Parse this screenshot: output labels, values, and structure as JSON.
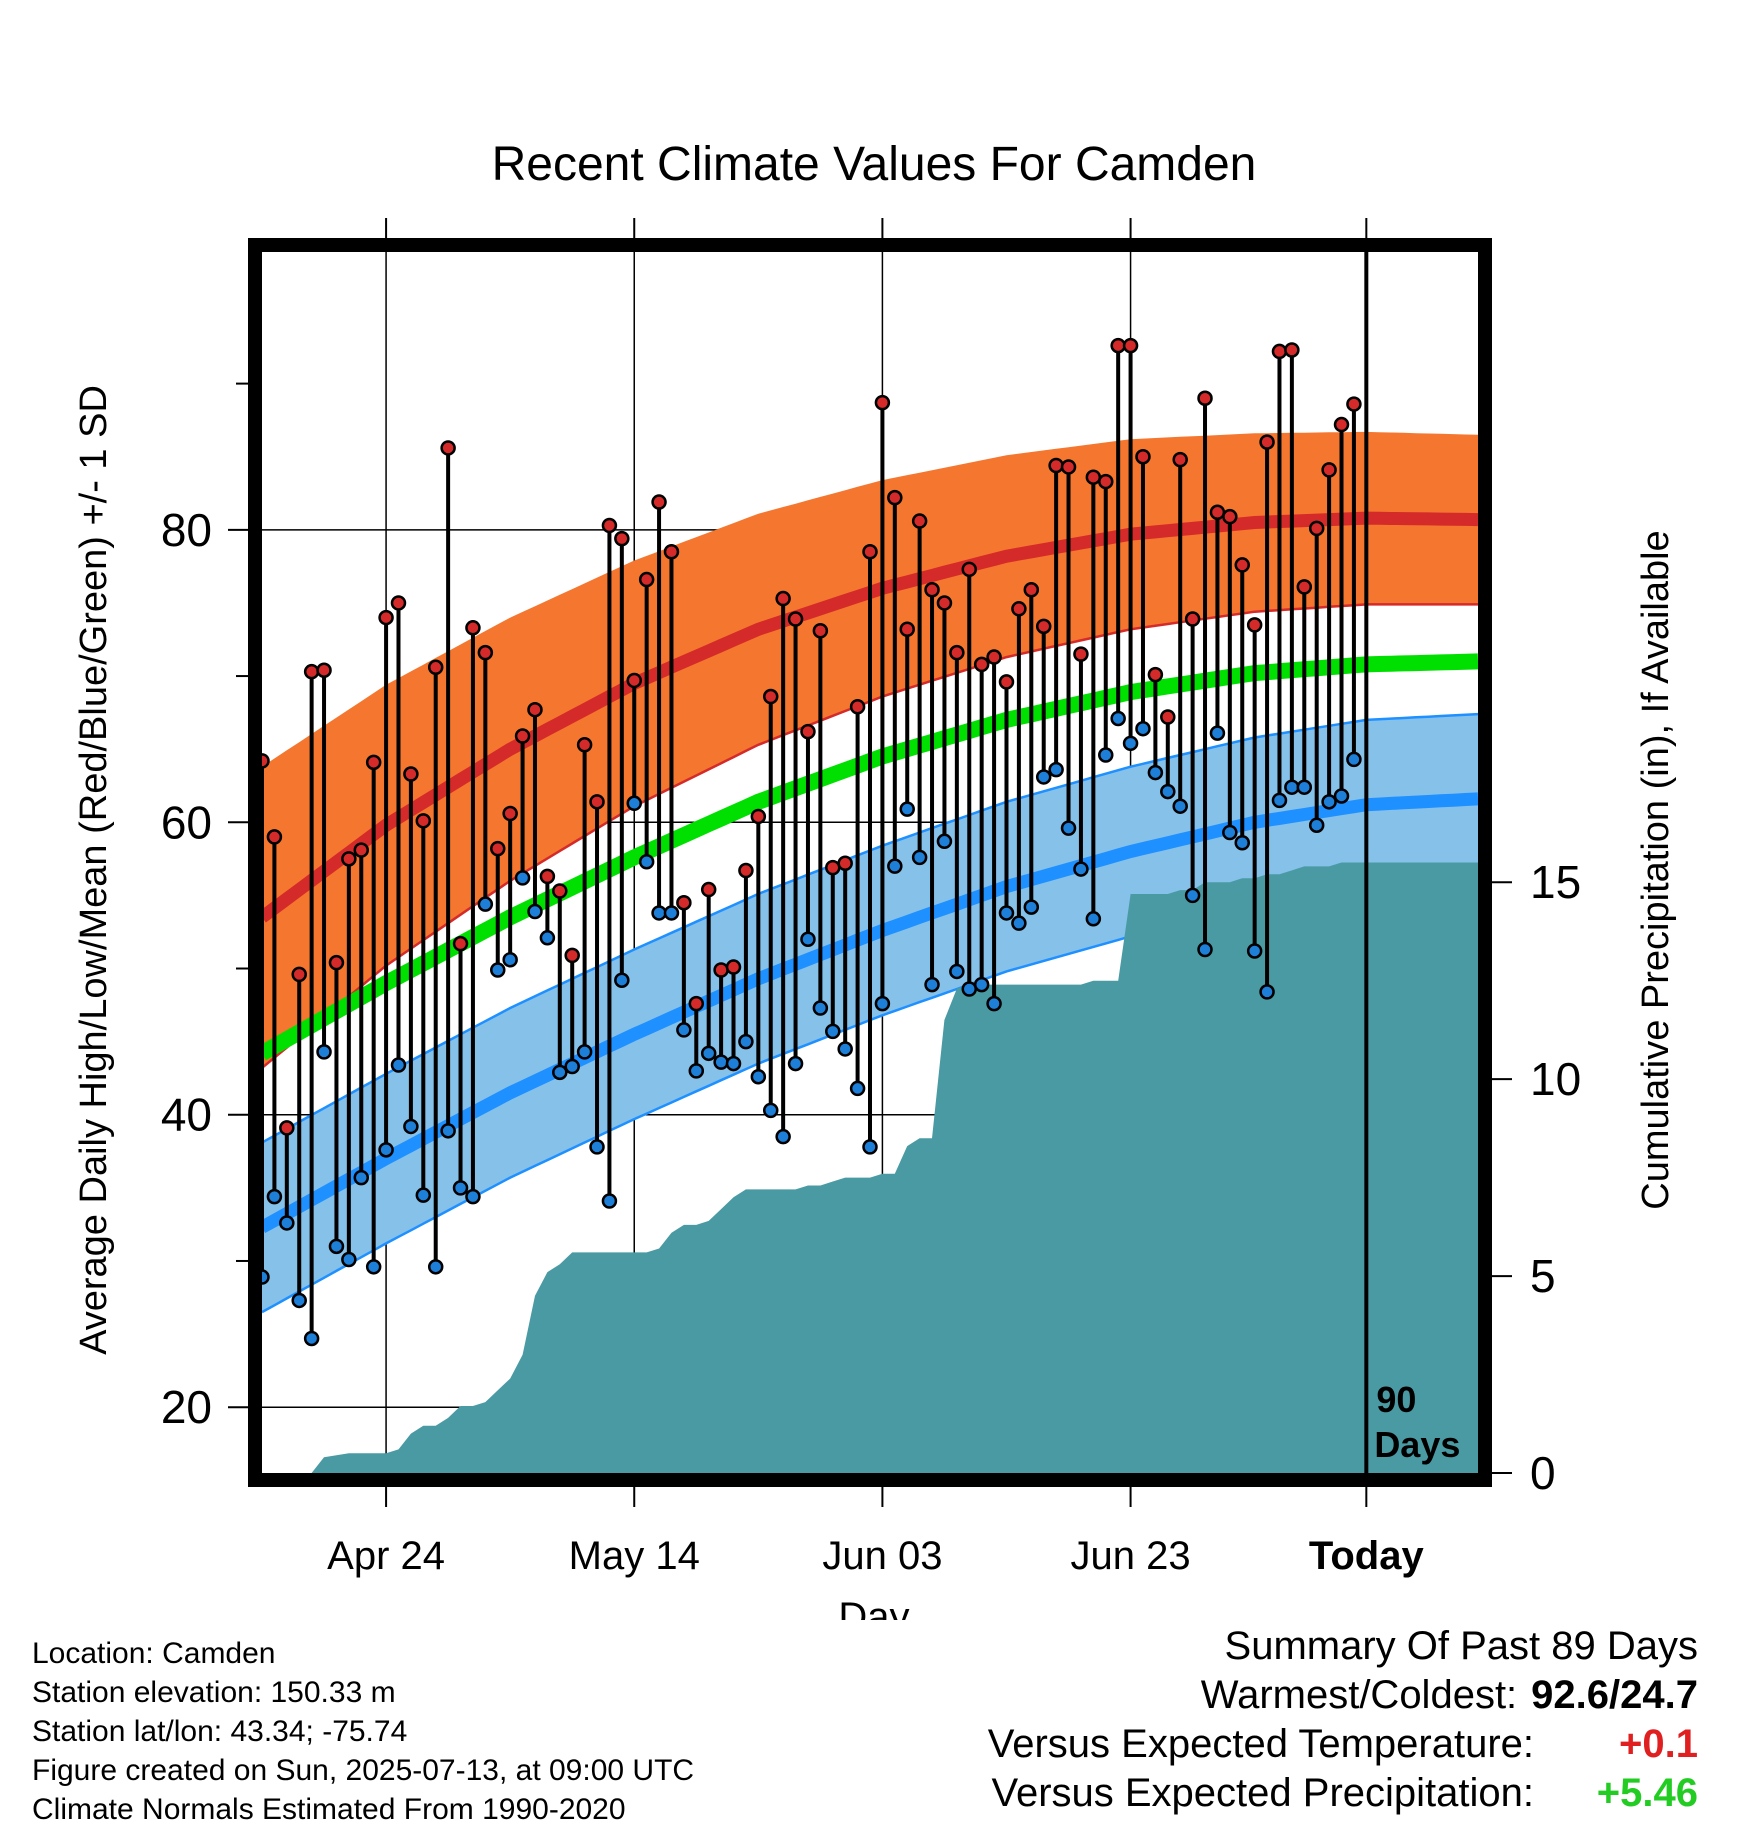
{
  "chart_data": {
    "type": "line",
    "title": "Recent Climate Values For Camden",
    "xlabel": "Day",
    "ylabel": "Average Daily High/Low/Mean (Red/Blue/Green) +/- 1 SD",
    "y2label": "Cumulative Precipitation (in), If Available",
    "x_range_days": [
      -89,
      9
    ],
    "ylim": [
      15.5,
      99
    ],
    "y2lim": [
      0,
      31
    ],
    "yticks": [
      20,
      40,
      60,
      80
    ],
    "y2ticks": [
      0,
      5,
      10,
      15
    ],
    "xticks": [
      {
        "day": -79,
        "label": "Apr 24"
      },
      {
        "day": -59,
        "label": "May 14"
      },
      {
        "day": -39,
        "label": "Jun 03"
      },
      {
        "day": -19,
        "label": "Jun 23"
      },
      {
        "day": 0,
        "label": "Today"
      }
    ],
    "today_marker_label": [
      "90",
      "Days"
    ],
    "colors": {
      "high_band": "#f5762e",
      "high_line": "#d42a2a",
      "low_band": "#85c1e9",
      "low_line": "#1e90ff",
      "mean_line": "#00e000",
      "precip": "#4a9aa4",
      "high_marker": "#d42a2a",
      "low_marker": "#1e7fd8"
    },
    "normals": {
      "days": [
        -89,
        -79,
        -69,
        -59,
        -49,
        -39,
        -29,
        -19,
        -9,
        0,
        9
      ],
      "high_mean": [
        53.5,
        59.8,
        65.0,
        69.5,
        73.2,
        76.0,
        78.2,
        79.7,
        80.5,
        80.8,
        80.7
      ],
      "high_sd": [
        10.3,
        9.6,
        9.0,
        8.4,
        7.9,
        7.4,
        6.9,
        6.5,
        6.1,
        5.9,
        5.8
      ],
      "low_mean": [
        32.3,
        37.0,
        41.5,
        45.5,
        49.3,
        52.6,
        55.6,
        58.0,
        60.0,
        61.2,
        61.6
      ],
      "low_sd": [
        5.8,
        5.8,
        5.8,
        5.8,
        5.8,
        5.8,
        5.8,
        5.8,
        5.8,
        5.8,
        5.8
      ],
      "mean": [
        44.2,
        49.0,
        53.5,
        57.6,
        61.4,
        64.5,
        67.0,
        68.9,
        70.2,
        70.8,
        71.0
      ]
    },
    "observations": {
      "day": [
        -89,
        -88,
        -87,
        -86,
        -85,
        -84,
        -83,
        -82,
        -81,
        -80,
        -79,
        -78,
        -77,
        -76,
        -75,
        -74,
        -73,
        -72,
        -71,
        -70,
        -69,
        -68,
        -67,
        -66,
        -65,
        -64,
        -63,
        -62,
        -61,
        -60,
        -59,
        -58,
        -57,
        -56,
        -55,
        -54,
        -53,
        -52,
        -51,
        -50,
        -49,
        -48,
        -47,
        -46,
        -45,
        -44,
        -43,
        -42,
        -41,
        -40,
        -39,
        -38,
        -37,
        -36,
        -35,
        -34,
        -33,
        -32,
        -31,
        -30,
        -29,
        -28,
        -27,
        -26,
        -25,
        -24,
        -23,
        -22,
        -21,
        -20,
        -19,
        -18,
        -17,
        -16,
        -15,
        -14,
        -13,
        -12,
        -11,
        -10,
        -9,
        -8,
        -7,
        -6,
        -5,
        -4,
        -3,
        -2,
        -1
      ],
      "high": [
        64.2,
        59.0,
        39.1,
        49.6,
        70.3,
        70.4,
        50.4,
        57.5,
        58.1,
        64.1,
        74.0,
        75.0,
        63.3,
        60.1,
        70.6,
        85.6,
        51.7,
        73.3,
        71.6,
        58.2,
        60.6,
        65.9,
        67.7,
        56.3,
        55.3,
        50.9,
        65.3,
        61.4,
        80.3,
        79.4,
        69.7,
        76.6,
        81.9,
        78.5,
        54.5,
        47.6,
        55.4,
        49.9,
        50.1,
        56.7,
        60.4,
        68.6,
        75.3,
        73.9,
        66.2,
        73.1,
        56.9,
        57.2,
        67.9,
        78.5,
        88.7,
        82.2,
        73.2,
        80.6,
        75.9,
        75.0,
        71.6,
        77.3,
        70.8,
        71.3,
        69.6,
        74.6,
        75.9,
        73.4,
        84.4,
        84.3,
        71.5,
        83.6,
        83.3,
        92.6,
        92.6,
        85.0,
        70.1,
        67.2,
        84.8,
        73.9,
        89.0,
        81.2,
        80.9,
        77.6,
        73.5,
        86.0,
        92.2,
        92.3,
        76.1,
        80.1,
        84.1,
        87.2,
        88.6
      ],
      "low": [
        28.9,
        34.4,
        32.6,
        27.3,
        24.7,
        44.3,
        31.0,
        30.1,
        35.7,
        29.6,
        37.6,
        43.4,
        39.2,
        34.5,
        29.6,
        38.9,
        35.0,
        34.4,
        54.4,
        49.9,
        50.6,
        56.2,
        53.9,
        52.1,
        42.9,
        43.3,
        44.3,
        37.8,
        34.1,
        49.2,
        61.3,
        57.3,
        53.8,
        53.8,
        45.8,
        43.0,
        44.2,
        43.6,
        43.5,
        45.0,
        42.6,
        40.3,
        38.5,
        43.5,
        52.0,
        47.3,
        45.7,
        44.5,
        41.8,
        37.8,
        47.6,
        57.0,
        60.9,
        57.6,
        48.9,
        58.7,
        49.8,
        48.6,
        48.9,
        47.6,
        53.8,
        53.1,
        54.2,
        63.1,
        63.6,
        59.6,
        56.8,
        53.4,
        64.6,
        67.1,
        65.4,
        66.4,
        63.4,
        62.1,
        61.1,
        55.0,
        51.3,
        66.1,
        59.3,
        58.6,
        51.2,
        48.4,
        61.5,
        62.4,
        62.4,
        59.8,
        61.4,
        61.8,
        64.3
      ]
    },
    "precipitation": {
      "day": [
        -89,
        -85,
        -84,
        -83,
        -82,
        -81,
        -79,
        -78,
        -77,
        -76,
        -75,
        -74,
        -73,
        -72,
        -71,
        -70,
        -69,
        -68,
        -67,
        -66,
        -65,
        -64,
        -63,
        -62,
        -61,
        -59,
        -58,
        -57,
        -56,
        -55,
        -54,
        -53,
        -52,
        -51,
        -50,
        -49,
        -48,
        -47,
        -46,
        -45,
        -44,
        -43,
        -42,
        -41,
        -40,
        -39,
        -38,
        -37,
        -36,
        -35,
        -34,
        -33,
        -32,
        -30,
        -28,
        -25,
        -24,
        -23,
        -22,
        -21,
        -20,
        -19,
        -18,
        -17,
        -16,
        -15,
        -14,
        -13,
        -12,
        -11,
        -10,
        -9,
        -8,
        -7,
        -6,
        -5,
        -4,
        -3,
        -2,
        -1,
        0,
        9
      ],
      "cumulative": [
        0,
        0,
        0.4,
        0.45,
        0.5,
        0.5,
        0.5,
        0.6,
        1.0,
        1.2,
        1.2,
        1.4,
        1.7,
        1.7,
        1.8,
        2.1,
        2.4,
        3.0,
        4.5,
        5.1,
        5.3,
        5.6,
        5.6,
        5.6,
        5.6,
        5.6,
        5.6,
        5.7,
        6.1,
        6.3,
        6.3,
        6.4,
        6.7,
        7.0,
        7.2,
        7.2,
        7.2,
        7.2,
        7.2,
        7.3,
        7.3,
        7.4,
        7.5,
        7.5,
        7.5,
        7.6,
        7.6,
        8.3,
        8.5,
        8.5,
        11.5,
        12.3,
        12.4,
        12.4,
        12.4,
        12.4,
        12.4,
        12.4,
        12.5,
        12.5,
        12.5,
        14.7,
        14.7,
        14.7,
        14.7,
        14.8,
        14.8,
        15.0,
        15.0,
        15.0,
        15.1,
        15.1,
        15.2,
        15.2,
        15.3,
        15.4,
        15.4,
        15.4,
        15.5,
        15.5,
        15.5,
        15.5
      ]
    }
  },
  "footer": {
    "location": "Location: Camden",
    "elevation": "Station elevation: 150.33 m",
    "latlon": "Station lat/lon: 43.34; -75.74",
    "created": "Figure created on Sun, 2025-07-13, at 09:00 UTC",
    "normals": "Climate Normals Estimated From 1990-2020"
  },
  "summary": {
    "title": "Summary Of Past 89 Days",
    "warmest_coldest_label": "Warmest/Coldest:",
    "warmest_coldest_value": "92.6/24.7",
    "temp_label": "Versus Expected Temperature:",
    "temp_value": "+0.1",
    "precip_label": "Versus Expected Precipitation:",
    "precip_value": "+5.46"
  }
}
